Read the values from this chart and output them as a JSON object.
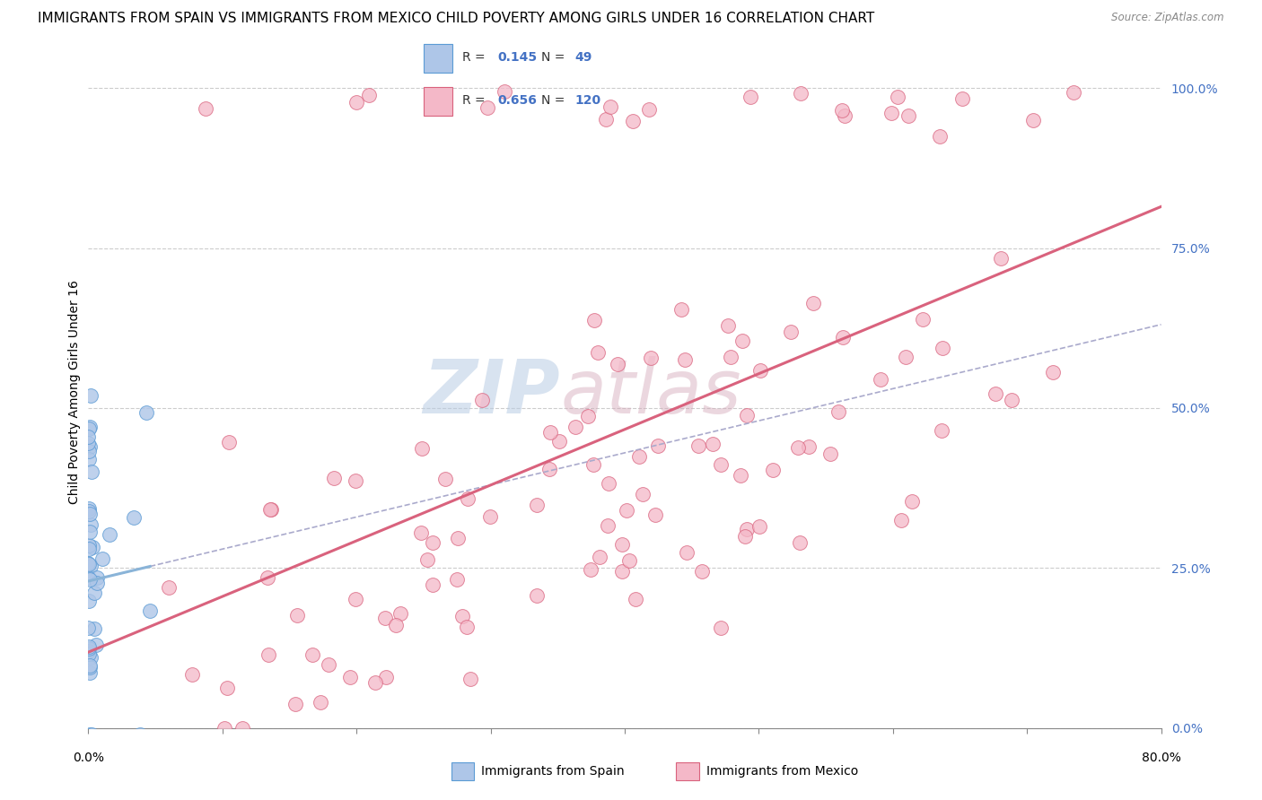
{
  "title": "IMMIGRANTS FROM SPAIN VS IMMIGRANTS FROM MEXICO CHILD POVERTY AMONG GIRLS UNDER 16 CORRELATION CHART",
  "source": "Source: ZipAtlas.com",
  "ylabel": "Child Poverty Among Girls Under 16",
  "ytick_labels": [
    "0.0%",
    "25.0%",
    "50.0%",
    "75.0%",
    "100.0%"
  ],
  "ytick_values": [
    0.0,
    0.25,
    0.5,
    0.75,
    1.0
  ],
  "xlim": [
    0.0,
    0.8
  ],
  "ylim": [
    0.0,
    1.05
  ],
  "legend_labels_bottom": [
    "Immigrants from Spain",
    "Immigrants from Mexico"
  ],
  "spain_color": "#aec6e8",
  "spain_edge": "#5b9bd5",
  "mexico_color": "#f4b8c8",
  "mexico_edge": "#d9627d",
  "trendline_spain_color": "#8ab4d8",
  "trendline_spain_dash_color": "#aaaacc",
  "trendline_mexico_color": "#d9627d",
  "watermark_zip": "ZIP",
  "watermark_atlas": "atlas",
  "watermark_color": "#c8d8ee",
  "background_color": "#ffffff",
  "grid_color": "#cccccc",
  "title_fontsize": 11,
  "axis_label_fontsize": 10,
  "tick_fontsize": 10,
  "legend_R_spain": "0.145",
  "legend_N_spain": "49",
  "legend_R_mexico": "0.656",
  "legend_N_mexico": "120"
}
